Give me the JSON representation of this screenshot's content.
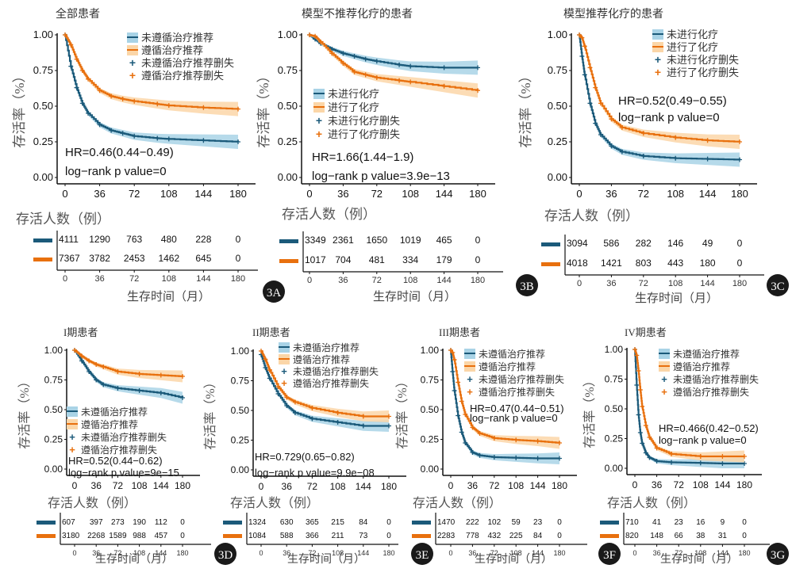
{
  "figure": {
    "colors": {
      "not_followed": "#1b5a7a",
      "followed": "#e8700e",
      "not_followed_ci": "#a9d3e6",
      "followed_ci": "#fbd6a8",
      "badge": "#1a1a1a"
    },
    "common": {
      "ylabel": "存活率（%）",
      "risk_title": "存活人数（例）",
      "xlabel": "生存时间（月）",
      "yticks": [
        "0.00",
        "0.25",
        "0.50",
        "0.75",
        "1.00"
      ],
      "xticks": [
        "0",
        "36",
        "72",
        "108",
        "144",
        "180"
      ]
    }
  },
  "chart_data": [
    {
      "id": "3A",
      "type": "line",
      "title": "全部患者",
      "xlabel": "生存时间（月）",
      "ylabel": "存活率（%）",
      "xlim": [
        0,
        180
      ],
      "ylim": [
        0,
        1
      ],
      "legend_position": "top-right",
      "legend": [
        "未遵循治疗推荐",
        "遵循治疗推荐",
        "未遵循治疗推荐删失",
        "遵循治疗推荐删失"
      ],
      "annotation": [
        "HR=0.46(0.44−0.49)",
        "log−rank p value=0"
      ],
      "x": [
        0,
        6,
        12,
        18,
        24,
        36,
        48,
        60,
        72,
        96,
        108,
        144,
        180
      ],
      "series": [
        {
          "name": "未遵循治疗推荐",
          "values": [
            1.0,
            0.78,
            0.63,
            0.52,
            0.45,
            0.37,
            0.33,
            0.31,
            0.29,
            0.275,
            0.27,
            0.26,
            0.25
          ]
        },
        {
          "name": "遵循治疗推荐",
          "values": [
            1.0,
            0.93,
            0.83,
            0.75,
            0.69,
            0.61,
            0.57,
            0.55,
            0.535,
            0.515,
            0.505,
            0.49,
            0.48
          ]
        }
      ],
      "risk_table": [
        {
          "name": "未遵循治疗推荐",
          "values": [
            4111,
            1290,
            763,
            480,
            228,
            0
          ]
        },
        {
          "name": "遵循治疗推荐",
          "values": [
            7367,
            3782,
            2453,
            1462,
            645,
            0
          ]
        }
      ],
      "risk_x": [
        0,
        36,
        72,
        108,
        144,
        180
      ]
    },
    {
      "id": "3B",
      "type": "line",
      "title": "模型不推荐化疗的患者",
      "xlabel": "生存时间（月）",
      "ylabel": "存活率（%）",
      "xlim": [
        0,
        180
      ],
      "ylim": [
        0,
        1
      ],
      "legend_position": "center-left",
      "legend": [
        "未进行化疗",
        "进行了化疗",
        "未进行化疗删失",
        "进行了化疗删失"
      ],
      "annotation": [
        "HR=1.66(1.44−1.9)",
        "log−rank p value=3.9e−13"
      ],
      "x": [
        0,
        6,
        12,
        24,
        36,
        48,
        60,
        72,
        96,
        108,
        144,
        180
      ],
      "series": [
        {
          "name": "未进行化疗",
          "values": [
            1.0,
            0.97,
            0.94,
            0.9,
            0.87,
            0.85,
            0.83,
            0.815,
            0.79,
            0.78,
            0.77,
            0.77
          ]
        },
        {
          "name": "进行了化疗",
          "values": [
            1.0,
            0.99,
            0.95,
            0.87,
            0.8,
            0.74,
            0.72,
            0.7,
            0.68,
            0.67,
            0.64,
            0.61
          ]
        }
      ],
      "risk_table": [
        {
          "name": "未进行化疗",
          "values": [
            3349,
            2361,
            1650,
            1019,
            465,
            0
          ]
        },
        {
          "name": "进行了化疗",
          "values": [
            1017,
            704,
            481,
            334,
            179,
            0
          ]
        }
      ],
      "risk_x": [
        0,
        36,
        72,
        108,
        144,
        180
      ]
    },
    {
      "id": "3C",
      "type": "line",
      "title": "模型推荐化疗的患者",
      "xlabel": "生存时间（月）",
      "ylabel": "存活率（%）",
      "xlim": [
        0,
        180
      ],
      "ylim": [
        0,
        1
      ],
      "legend_position": "top-right",
      "legend": [
        "未进行化疗",
        "进行了化疗",
        "未进行化疗删失",
        "进行了化疗删失"
      ],
      "annotation": [
        "HR=0.52(0.49−0.55)",
        "log−rank p value=0"
      ],
      "x": [
        0,
        3,
        6,
        12,
        18,
        24,
        36,
        48,
        72,
        108,
        144,
        180
      ],
      "series": [
        {
          "name": "未进行化疗",
          "values": [
            1.0,
            0.85,
            0.72,
            0.52,
            0.38,
            0.3,
            0.22,
            0.18,
            0.15,
            0.135,
            0.13,
            0.125
          ]
        },
        {
          "name": "进行了化疗",
          "values": [
            1.0,
            0.98,
            0.92,
            0.77,
            0.63,
            0.52,
            0.41,
            0.35,
            0.31,
            0.28,
            0.26,
            0.25
          ]
        }
      ],
      "risk_table": [
        {
          "name": "未进行化疗",
          "values": [
            3094,
            586,
            282,
            146,
            49,
            0
          ]
        },
        {
          "name": "进行了化疗",
          "values": [
            4018,
            1421,
            803,
            443,
            180,
            0
          ]
        }
      ],
      "risk_x": [
        0,
        36,
        72,
        108,
        144,
        180
      ]
    },
    {
      "id": "3D",
      "type": "line",
      "title": "I期患者",
      "xlabel": "生存时间（月）",
      "ylabel": "存活率（%）",
      "xlim": [
        0,
        180
      ],
      "ylim": [
        0,
        1
      ],
      "legend_position": "bottom-left",
      "legend": [
        "未遵循治疗推荐",
        "遵循治疗推荐",
        "未遵循治疗推荐删失",
        "遵循治疗推荐删失"
      ],
      "annotation": [
        "HR=0.52(0.44−0.62)",
        "log−rank p value=9e−15"
      ],
      "x": [
        0,
        12,
        24,
        36,
        48,
        72,
        108,
        144,
        180
      ],
      "series": [
        {
          "name": "未遵循治疗推荐",
          "values": [
            1.0,
            0.91,
            0.82,
            0.75,
            0.71,
            0.68,
            0.66,
            0.64,
            0.6
          ]
        },
        {
          "name": "遵循治疗推荐",
          "values": [
            1.0,
            0.95,
            0.91,
            0.88,
            0.86,
            0.82,
            0.8,
            0.79,
            0.78
          ]
        }
      ],
      "risk_table": [
        {
          "name": "未遵循治疗推荐",
          "values": [
            607,
            397,
            273,
            190,
            112,
            0
          ]
        },
        {
          "name": "遵循治疗推荐",
          "values": [
            3180,
            2268,
            1589,
            988,
            457,
            0
          ]
        }
      ],
      "risk_x": [
        0,
        36,
        72,
        108,
        144,
        180
      ]
    },
    {
      "id": "3E",
      "type": "line",
      "title": "II期患者",
      "xlabel": "生存时间（月）",
      "ylabel": "存活率（%）",
      "xlim": [
        0,
        180
      ],
      "ylim": [
        0,
        1
      ],
      "legend_position": "top-right",
      "legend": [
        "未遵循治疗推荐",
        "遵循治疗推荐",
        "未遵循治疗推荐删失",
        "遵循治疗推荐删失"
      ],
      "annotation": [
        "HR=0.729(0.65−0.82)",
        "log−rank p value=9.9e−08"
      ],
      "x": [
        0,
        6,
        12,
        24,
        36,
        48,
        72,
        108,
        144,
        180
      ],
      "series": [
        {
          "name": "未遵循治疗推荐",
          "values": [
            0.97,
            0.86,
            0.77,
            0.64,
            0.54,
            0.48,
            0.43,
            0.4,
            0.37,
            0.37
          ]
        },
        {
          "name": "遵循治疗推荐",
          "values": [
            1.0,
            0.93,
            0.84,
            0.7,
            0.61,
            0.57,
            0.52,
            0.48,
            0.45,
            0.45
          ]
        }
      ],
      "risk_table": [
        {
          "name": "未遵循治疗推荐",
          "values": [
            1324,
            630,
            365,
            215,
            84,
            0
          ]
        },
        {
          "name": "遵循治疗推荐",
          "values": [
            1084,
            588,
            366,
            211,
            73,
            0
          ]
        }
      ],
      "risk_x": [
        0,
        36,
        72,
        108,
        144,
        180
      ]
    },
    {
      "id": "3F",
      "type": "line",
      "title": "III期患者",
      "xlabel": "生存时间（月）",
      "ylabel": "存活率（%）",
      "xlim": [
        0,
        180
      ],
      "ylim": [
        0,
        1
      ],
      "legend_position": "top-right",
      "legend": [
        "未遵循治疗推荐",
        "遵循治疗推荐",
        "未遵循治疗推荐删失",
        "遵循治疗推荐删失"
      ],
      "annotation": [
        "HR=0.47(0.44−0.51)",
        "log−rank p value=0"
      ],
      "x": [
        0,
        3,
        6,
        12,
        18,
        24,
        36,
        48,
        72,
        108,
        144,
        180
      ],
      "series": [
        {
          "name": "未遵循治疗推荐",
          "values": [
            1.0,
            0.82,
            0.66,
            0.45,
            0.31,
            0.22,
            0.14,
            0.115,
            0.1,
            0.095,
            0.09,
            0.09
          ]
        },
        {
          "name": "遵循治疗推荐",
          "values": [
            1.0,
            0.98,
            0.92,
            0.73,
            0.57,
            0.46,
            0.35,
            0.3,
            0.26,
            0.245,
            0.235,
            0.22
          ]
        }
      ],
      "risk_table": [
        {
          "name": "未遵循治疗推荐",
          "values": [
            1470,
            222,
            102,
            59,
            23,
            0
          ]
        },
        {
          "name": "遵循治疗推荐",
          "values": [
            2283,
            778,
            432,
            225,
            84,
            0
          ]
        }
      ],
      "risk_x": [
        0,
        36,
        72,
        108,
        144,
        180
      ]
    },
    {
      "id": "3G",
      "type": "line",
      "title": "IV期患者",
      "xlabel": "生存时间（月）",
      "ylabel": "存活率（%）",
      "xlim": [
        0,
        180
      ],
      "ylim": [
        0,
        1
      ],
      "legend_position": "top-right",
      "legend": [
        "未遵循治疗推荐",
        "遵循治疗推荐",
        "未遵循治疗推荐删失",
        "遵循治疗推荐删失"
      ],
      "annotation": [
        "HR=0.466(0.42−0.52)",
        "log−rank p value=0"
      ],
      "x": [
        0,
        3,
        6,
        9,
        12,
        18,
        24,
        36,
        60,
        108,
        144,
        180
      ],
      "series": [
        {
          "name": "未遵循治疗推荐",
          "values": [
            1.0,
            0.7,
            0.45,
            0.3,
            0.21,
            0.13,
            0.09,
            0.06,
            0.05,
            0.045,
            0.04,
            0.04
          ]
        },
        {
          "name": "遵循治疗推荐",
          "values": [
            1.0,
            0.95,
            0.82,
            0.66,
            0.52,
            0.36,
            0.26,
            0.17,
            0.12,
            0.1,
            0.1,
            0.1
          ]
        }
      ],
      "risk_table": [
        {
          "name": "未遵循治疗推荐",
          "values": [
            710,
            41,
            23,
            16,
            9,
            0
          ]
        },
        {
          "name": "遵循治疗推荐",
          "values": [
            820,
            148,
            66,
            38,
            31,
            0
          ]
        }
      ],
      "risk_x": [
        0,
        36,
        72,
        108,
        144,
        180
      ]
    }
  ]
}
